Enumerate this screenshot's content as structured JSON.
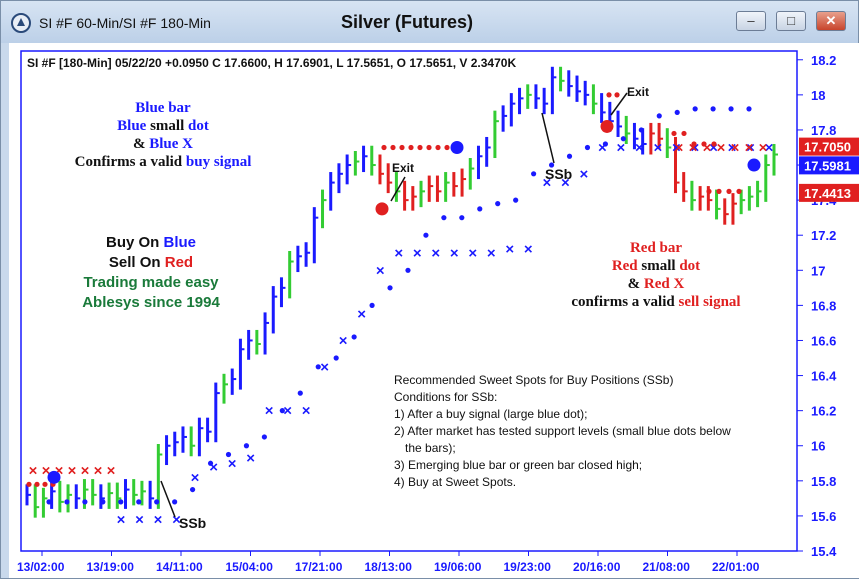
{
  "window": {
    "title": "SI #F 60-Min/SI #F 180-Min",
    "chart_title": "Silver (Futures)",
    "minimize_label": "–",
    "maximize_label": "□",
    "close_label": "✕"
  },
  "chart_header": "SI #F [180-Min] 05/22/20  +0.0950 C 17.6600, H 17.6901, L 17.5651, O 17.5651, V 2.3470K",
  "annotations": {
    "buy_block": {
      "line1": "Blue bar",
      "line2a": "Blue",
      "line2b": " small ",
      "line2c": "dot",
      "line3a": "& ",
      "line3b": "Blue X",
      "line4a": "Confirms a valid ",
      "line4b": "buy signal"
    },
    "promo": {
      "buy_a": "Buy On ",
      "buy_b": "Blue",
      "sell_a": "Sell On ",
      "sell_b": "Red",
      "line3": "Trading made easy",
      "line4": "Ablesys since 1994"
    },
    "sell_block": {
      "line1": "Red bar",
      "line2a": "Red",
      "line2b": " small ",
      "line2c": "dot",
      "line3a": "& ",
      "line3b": "Red X",
      "line4a": "confirms a valid ",
      "line4b": "sell signal"
    },
    "exit_label": "Exit",
    "ssb_label": "SSb",
    "info_lines": [
      "Recommended Sweet Spots for Buy Positions (SSb)",
      "Conditions for SSb:",
      "1) After a buy signal (large blue dot);",
      "2) After market has tested support levels (small blue dots below",
      "the bars);",
      "3) Emerging blue bar or green bar closed high;",
      "4) Buy at Sweet Spots."
    ]
  },
  "chart_data": {
    "type": "line",
    "title": "Silver (Futures)",
    "x_ticks": [
      "13/02:00",
      "13/19:00",
      "14/11:00",
      "15/04:00",
      "17/21:00",
      "18/13:00",
      "19/06:00",
      "19/23:00",
      "20/16:00",
      "21/08:00",
      "22/01:00"
    ],
    "y_ticks": [
      "18.2",
      "18",
      "17.8",
      "17.6",
      "17.4",
      "17.2",
      "17",
      "16.8",
      "16.6",
      "16.4",
      "16.2",
      "16",
      "15.8",
      "15.6",
      "15.4"
    ],
    "ylim": [
      15.4,
      18.25
    ],
    "price_badges": [
      {
        "value": "17.7050",
        "color": "#e02020"
      },
      {
        "value": "17.5981",
        "color": "#1a1aff"
      },
      {
        "value": "17.4413",
        "color": "#e02020"
      }
    ],
    "price_series": [
      15.72,
      15.65,
      15.7,
      15.74,
      15.68,
      15.72,
      15.7,
      15.75,
      15.72,
      15.7,
      15.73,
      15.7,
      15.75,
      15.72,
      15.74,
      15.7,
      15.95,
      16.0,
      16.02,
      16.05,
      16.0,
      16.1,
      16.08,
      16.3,
      16.35,
      16.38,
      16.55,
      16.6,
      16.58,
      16.7,
      16.85,
      16.9,
      17.05,
      17.08,
      17.1,
      17.3,
      17.4,
      17.5,
      17.55,
      17.6,
      17.62,
      17.65,
      17.6,
      17.55,
      17.5,
      17.45,
      17.4,
      17.42,
      17.45,
      17.48,
      17.45,
      17.5,
      17.48,
      17.52,
      17.58,
      17.65,
      17.7,
      17.85,
      17.88,
      17.95,
      17.98,
      18.0,
      17.98,
      17.95,
      18.1,
      18.08,
      18.05,
      18.02,
      18.0,
      17.95,
      17.9,
      17.85,
      17.82,
      17.78,
      17.75,
      17.72,
      17.78,
      17.75,
      17.7,
      17.5,
      17.45,
      17.4,
      17.42,
      17.4,
      17.35,
      17.32,
      17.38,
      17.4,
      17.42,
      17.45,
      17.6,
      17.66
    ],
    "dots_blue": [
      15.68,
      15.68,
      15.68,
      15.68,
      15.68,
      15.68,
      15.68,
      15.68,
      15.75,
      15.9,
      15.95,
      16.0,
      16.05,
      16.2,
      16.3,
      16.45,
      16.5,
      16.62,
      16.8,
      16.9,
      17.0,
      17.2,
      17.3,
      17.3,
      17.35,
      17.38,
      17.4,
      17.55,
      17.6,
      17.65,
      17.7,
      17.72,
      17.75,
      17.8,
      17.88,
      17.9,
      17.92,
      17.92,
      17.92,
      17.92
    ],
    "x_markers_blue": [
      15.58,
      15.58,
      15.58,
      15.58,
      15.82,
      15.88,
      15.9,
      15.93,
      16.2,
      16.2,
      16.2,
      16.45,
      16.6,
      16.75,
      17.0,
      17.1,
      17.1,
      17.1,
      17.1,
      17.1,
      17.1,
      17.12,
      17.12,
      17.5,
      17.5,
      17.55,
      17.7,
      17.7,
      17.7,
      17.7,
      17.7,
      17.7,
      17.7,
      17.7,
      17.7,
      17.7
    ],
    "x_markers_red": [
      15.86,
      15.86,
      15.86,
      15.86,
      15.86,
      15.86,
      15.86,
      17.7,
      17.7,
      17.7,
      17.7,
      17.7,
      17.7,
      17.7
    ],
    "dots_red": [
      15.78,
      15.78,
      15.78,
      15.78,
      17.7,
      17.7,
      17.7,
      17.7,
      17.7,
      17.7,
      17.7,
      17.7,
      17.7,
      18.0,
      18.0,
      17.78,
      17.78,
      17.72,
      17.72,
      17.72,
      17.45,
      17.45,
      17.45,
      17.45
    ]
  }
}
